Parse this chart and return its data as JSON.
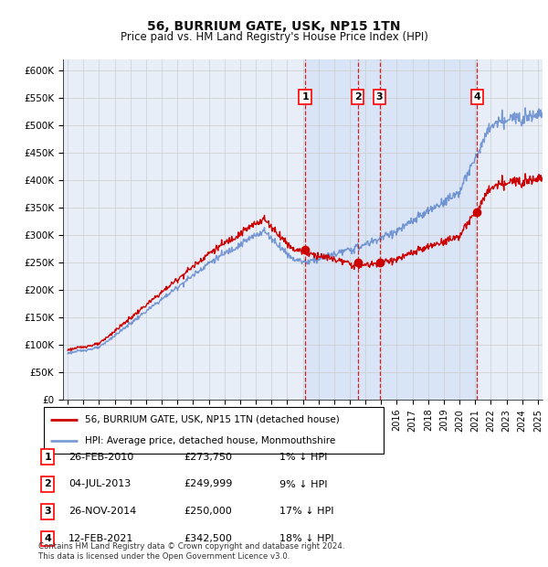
{
  "title": "56, BURRIUM GATE, USK, NP15 1TN",
  "subtitle": "Price paid vs. HM Land Registry's House Price Index (HPI)",
  "ylabel_values": [
    "£0",
    "£50K",
    "£100K",
    "£150K",
    "£200K",
    "£250K",
    "£300K",
    "£350K",
    "£400K",
    "£450K",
    "£500K",
    "£550K",
    "£600K"
  ],
  "ylim": [
    0,
    620000
  ],
  "yticks": [
    0,
    50000,
    100000,
    150000,
    200000,
    250000,
    300000,
    350000,
    400000,
    450000,
    500000,
    550000,
    600000
  ],
  "background_color": "#ffffff",
  "plot_background": "#e8eef8",
  "shade_color": "#d0dff5",
  "grid_color": "#cccccc",
  "hpi_color": "#4472c4",
  "hpi_line_alpha": 0.7,
  "price_color": "#cc0000",
  "sale_marker_color": "#cc0000",
  "vline_color": "#cc0000",
  "transactions": [
    {
      "id": 1,
      "date_num": 2010.15,
      "price": 273750,
      "label": "26-FEB-2010",
      "amount": "£273,750",
      "hpi_rel": "1% ↓ HPI"
    },
    {
      "id": 2,
      "date_num": 2013.5,
      "price": 249999,
      "label": "04-JUL-2013",
      "amount": "£249,999",
      "hpi_rel": "9% ↓ HPI"
    },
    {
      "id": 3,
      "date_num": 2014.9,
      "price": 250000,
      "label": "26-NOV-2014",
      "amount": "£250,000",
      "hpi_rel": "17% ↓ HPI"
    },
    {
      "id": 4,
      "date_num": 2021.12,
      "price": 342500,
      "label": "12-FEB-2021",
      "amount": "£342,500",
      "hpi_rel": "18% ↓ HPI"
    }
  ],
  "legend_price_label": "56, BURRIUM GATE, USK, NP15 1TN (detached house)",
  "legend_hpi_label": "HPI: Average price, detached house, Monmouthshire",
  "footnote": "Contains HM Land Registry data © Crown copyright and database right 2024.\nThis data is licensed under the Open Government Licence v3.0.",
  "xlim_start": 1994.7,
  "xlim_end": 2025.3
}
